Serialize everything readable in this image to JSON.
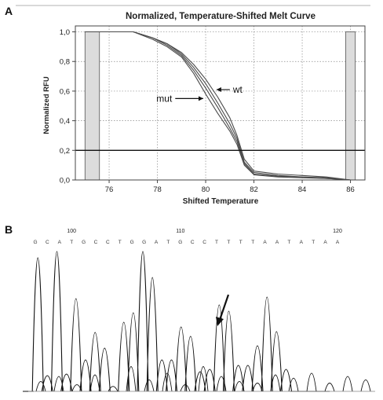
{
  "panel_a": {
    "label": "A",
    "chart_data": {
      "type": "line",
      "title": "Normalized, Temperature-Shifted Melt Curve",
      "xlabel": "Shifted Temperature",
      "ylabel": "Normalized RFU",
      "xlim": [
        74.6,
        86.6
      ],
      "ylim": [
        0.0,
        1.04
      ],
      "xticks": [
        "76",
        "78",
        "80",
        "82",
        "84",
        "86"
      ],
      "yticks": [
        "0,0",
        "0,2",
        "0,4",
        "0,6",
        "0,8",
        "1,0"
      ],
      "grid": true,
      "threshold": 0.2,
      "shaded_regions": [
        [
          75.0,
          75.6
        ],
        [
          85.8,
          86.2
        ]
      ],
      "annotations": [
        {
          "text": "mut",
          "x": 79.0,
          "y": 0.55
        },
        {
          "text": "wt",
          "x": 81.1,
          "y": 0.61
        }
      ],
      "series": [
        {
          "x": [
            75.0,
            76.0,
            77.0,
            77.8,
            78.4,
            79.0,
            79.5,
            80.0,
            80.5,
            81.0,
            81.3,
            81.6,
            82.0,
            83.0,
            84.0,
            85.0,
            86.0
          ],
          "y": [
            1.0,
            1.0,
            1.0,
            0.96,
            0.92,
            0.86,
            0.78,
            0.68,
            0.56,
            0.42,
            0.3,
            0.14,
            0.06,
            0.04,
            0.03,
            0.02,
            0.0
          ]
        },
        {
          "x": [
            75.0,
            76.0,
            77.0,
            77.8,
            78.4,
            79.0,
            79.5,
            80.0,
            80.5,
            81.0,
            81.3,
            81.6,
            82.0,
            83.0,
            84.0,
            85.0,
            86.0
          ],
          "y": [
            1.0,
            1.0,
            1.0,
            0.96,
            0.92,
            0.85,
            0.76,
            0.65,
            0.52,
            0.38,
            0.28,
            0.12,
            0.05,
            0.03,
            0.02,
            0.015,
            0.0
          ]
        },
        {
          "x": [
            75.0,
            76.0,
            77.0,
            77.8,
            78.4,
            79.0,
            79.5,
            80.0,
            80.5,
            81.0,
            81.3,
            81.6,
            82.0,
            83.0,
            84.0,
            85.0,
            86.0
          ],
          "y": [
            1.0,
            1.0,
            1.0,
            0.96,
            0.91,
            0.84,
            0.74,
            0.62,
            0.49,
            0.35,
            0.26,
            0.11,
            0.04,
            0.025,
            0.02,
            0.01,
            0.0
          ]
        },
        {
          "x": [
            75.0,
            76.0,
            77.0,
            77.8,
            78.4,
            79.0,
            79.5,
            80.0,
            80.5,
            81.0,
            81.3,
            81.6,
            82.0,
            83.0,
            84.0,
            85.0,
            86.0
          ],
          "y": [
            1.0,
            1.0,
            1.0,
            0.95,
            0.9,
            0.83,
            0.72,
            0.58,
            0.45,
            0.33,
            0.24,
            0.1,
            0.035,
            0.02,
            0.015,
            0.01,
            0.0
          ]
        }
      ]
    }
  },
  "panel_b": {
    "label": "B",
    "position_labels": [
      "100",
      "110",
      "120"
    ],
    "sequence": [
      "G",
      "C",
      "A",
      "T",
      "G",
      "C",
      "C",
      "T",
      "G",
      "G",
      "A",
      "T",
      "G",
      "C",
      "C",
      "T",
      "T",
      "T",
      "T",
      "A",
      "A",
      "T",
      "A",
      "T",
      "A",
      "A"
    ],
    "trace_color": "#111111",
    "arrow": "down-arrow"
  }
}
